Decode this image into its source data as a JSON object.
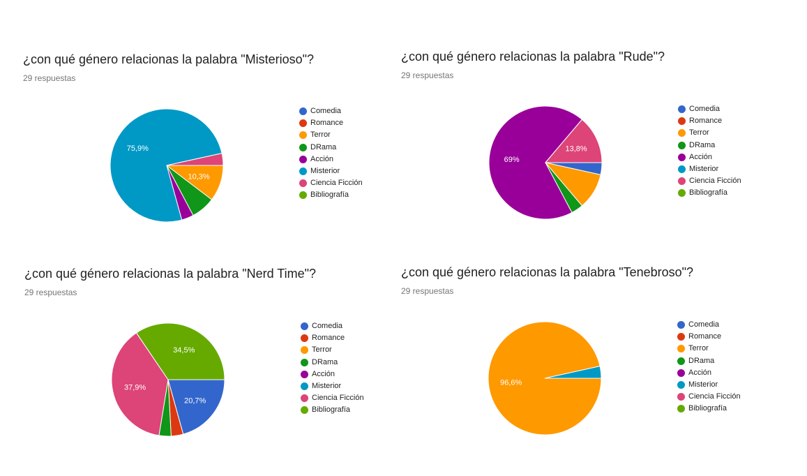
{
  "colors": {
    "Comedia": "#3366cc",
    "Romance": "#dc3912",
    "Terror": "#ff9900",
    "DRama": "#109618",
    "Acción": "#990099",
    "Misterior": "#0099c6",
    "Ciencia Ficción": "#dd4477",
    "Bibliografía": "#66aa00"
  },
  "legend_labels": [
    "Comedia",
    "Romance",
    "Terror",
    "DRama",
    "Acción",
    "Misterior",
    "Ciencia Ficción",
    "Bibliografía"
  ],
  "chart_data": [
    {
      "type": "pie",
      "title": "¿con qué género relacionas la palabra \"Misterioso\"?",
      "subtitle": "29 respuestas",
      "categories": [
        "Comedia",
        "Romance",
        "Terror",
        "DRama",
        "Acción",
        "Misterior",
        "Ciencia Ficción",
        "Bibliografía"
      ],
      "counts": [
        0,
        0,
        3,
        2,
        1,
        22,
        1,
        0
      ],
      "labels": [
        "",
        "",
        "10,3%",
        "",
        "",
        "75,9%",
        "",
        ""
      ],
      "legend_position": "right"
    },
    {
      "type": "pie",
      "title": "¿con qué género relacionas la palabra \"Rude\"?",
      "subtitle": "29 respuestas",
      "categories": [
        "Comedia",
        "Romance",
        "Terror",
        "DRama",
        "Acción",
        "Misterior",
        "Ciencia Ficción",
        "Bibliografía"
      ],
      "counts": [
        1,
        0,
        3,
        1,
        20,
        0,
        4,
        0
      ],
      "labels": [
        "",
        "",
        "",
        "",
        "69%",
        "",
        "13,8%",
        ""
      ],
      "legend_position": "right"
    },
    {
      "type": "pie",
      "title": "¿con qué género relacionas la palabra \"Nerd Time\"?",
      "subtitle": "29 respuestas",
      "categories": [
        "Comedia",
        "Romance",
        "Terror",
        "DRama",
        "Acción",
        "Misterior",
        "Ciencia Ficción",
        "Bibliografía"
      ],
      "counts": [
        6,
        1,
        0,
        1,
        0,
        0,
        11,
        10
      ],
      "labels": [
        "20,7%",
        "",
        "",
        "",
        "",
        "",
        "37,9%",
        "34,5%"
      ],
      "legend_position": "right"
    },
    {
      "type": "pie",
      "title": "¿con qué género relacionas la palabra \"Tenebroso\"?",
      "subtitle": "29 respuestas",
      "categories": [
        "Comedia",
        "Romance",
        "Terror",
        "DRama",
        "Acción",
        "Misterior",
        "Ciencia Ficción",
        "Bibliografía"
      ],
      "counts": [
        0,
        0,
        28,
        0,
        0,
        1,
        0,
        0
      ],
      "labels": [
        "",
        "",
        "96,6%",
        "",
        "",
        "",
        "",
        ""
      ],
      "legend_position": "right"
    }
  ]
}
